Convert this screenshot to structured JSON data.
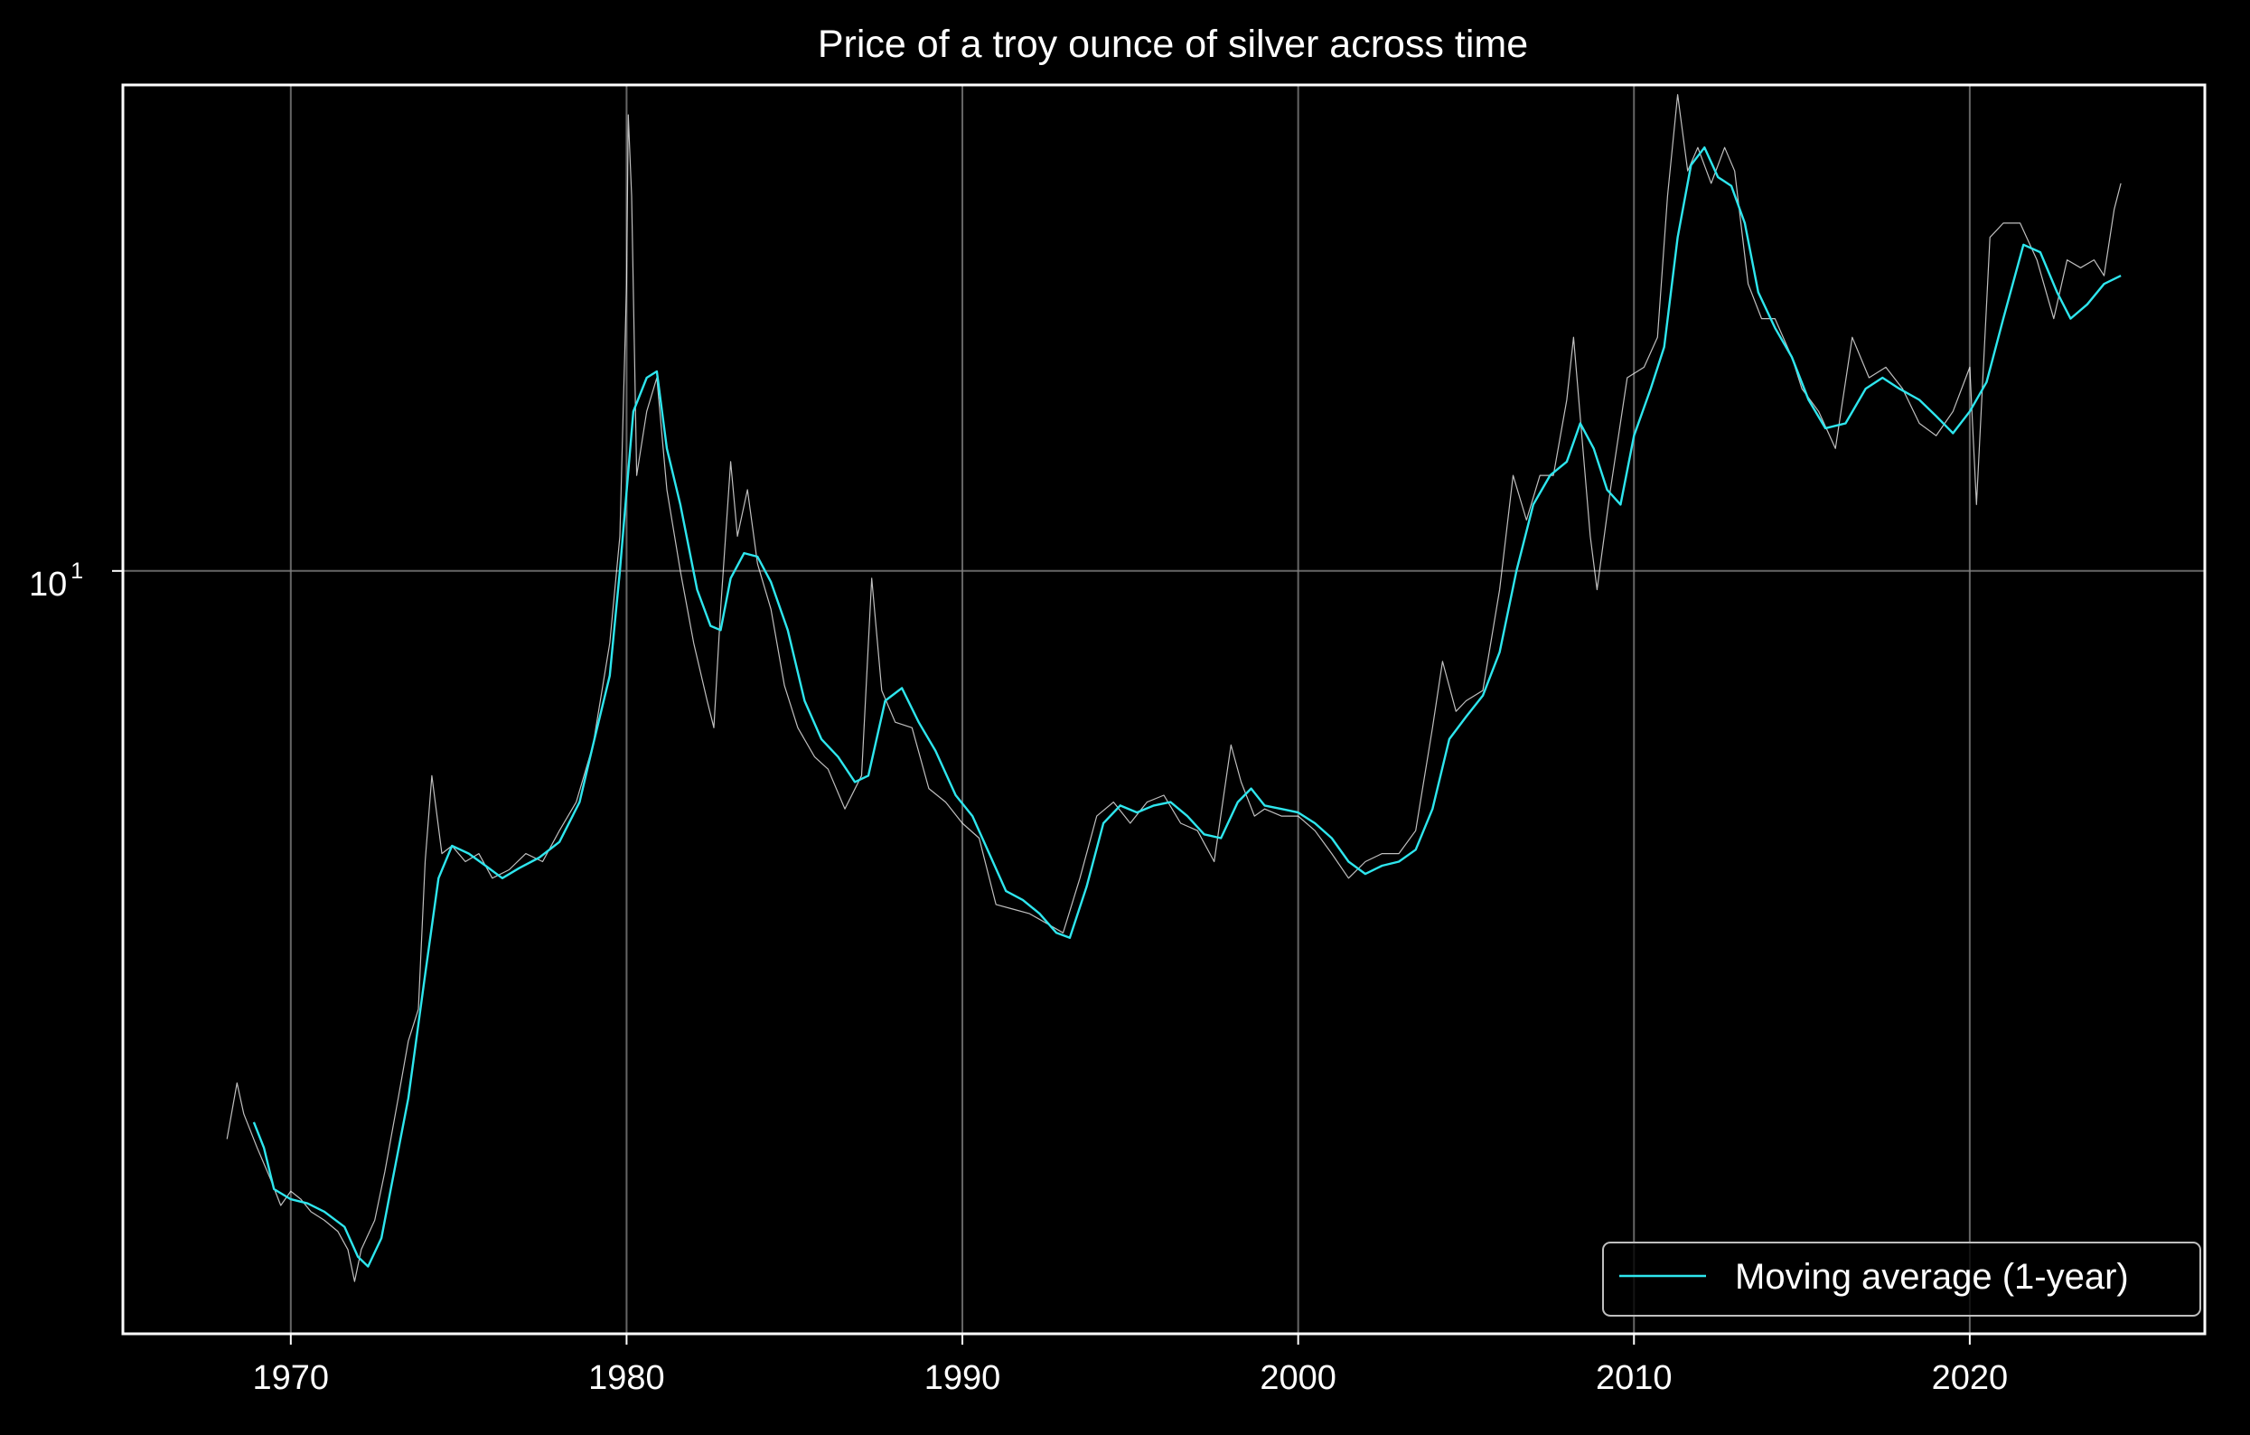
{
  "chart_data": {
    "type": "line",
    "title": "Price of a troy ounce of silver across time",
    "xlabel": "",
    "ylabel": "",
    "x_scale": "time (years)",
    "y_scale": "log",
    "xlim": [
      1965,
      2027
    ],
    "ylim": [
      1.23,
      38.0
    ],
    "x_ticks": [
      1970,
      1980,
      1990,
      2000,
      2010,
      2020
    ],
    "y_ticks": [
      {
        "value": 10,
        "base": "10",
        "exponent": "1"
      }
    ],
    "grid": true,
    "legend_placement": "lower-right",
    "colors": {
      "background": "#000000",
      "raw_series": "#ffffff",
      "moving_average": "#2ee6ee",
      "grid": "#7f7f7f"
    },
    "series": [
      {
        "name": "",
        "kind": "daily-price",
        "points": [
          [
            1968.1,
            2.1
          ],
          [
            1968.4,
            2.45
          ],
          [
            1968.6,
            2.25
          ],
          [
            1969.0,
            2.05
          ],
          [
            1969.4,
            1.88
          ],
          [
            1969.7,
            1.75
          ],
          [
            1970.0,
            1.82
          ],
          [
            1970.3,
            1.78
          ],
          [
            1970.6,
            1.72
          ],
          [
            1971.0,
            1.68
          ],
          [
            1971.4,
            1.63
          ],
          [
            1971.7,
            1.55
          ],
          [
            1971.9,
            1.42
          ],
          [
            1972.1,
            1.55
          ],
          [
            1972.5,
            1.68
          ],
          [
            1972.8,
            1.92
          ],
          [
            1973.2,
            2.35
          ],
          [
            1973.5,
            2.75
          ],
          [
            1973.8,
            3.0
          ],
          [
            1974.0,
            4.5
          ],
          [
            1974.2,
            5.7
          ],
          [
            1974.5,
            4.6
          ],
          [
            1974.8,
            4.7
          ],
          [
            1975.2,
            4.5
          ],
          [
            1975.6,
            4.6
          ],
          [
            1976.0,
            4.3
          ],
          [
            1976.5,
            4.4
          ],
          [
            1977.0,
            4.6
          ],
          [
            1977.5,
            4.5
          ],
          [
            1978.0,
            4.9
          ],
          [
            1978.5,
            5.3
          ],
          [
            1979.0,
            6.2
          ],
          [
            1979.5,
            8.2
          ],
          [
            1979.8,
            11.0
          ],
          [
            1980.0,
            22.0
          ],
          [
            1980.05,
            35.0
          ],
          [
            1980.15,
            28.0
          ],
          [
            1980.3,
            13.0
          ],
          [
            1980.6,
            15.5
          ],
          [
            1980.9,
            17.0
          ],
          [
            1981.2,
            12.5
          ],
          [
            1981.6,
            10.0
          ],
          [
            1982.0,
            8.2
          ],
          [
            1982.4,
            7.0
          ],
          [
            1982.6,
            6.5
          ],
          [
            1982.8,
            9.0
          ],
          [
            1983.1,
            13.5
          ],
          [
            1983.3,
            11.0
          ],
          [
            1983.6,
            12.5
          ],
          [
            1983.9,
            10.2
          ],
          [
            1984.3,
            9.0
          ],
          [
            1984.7,
            7.3
          ],
          [
            1985.1,
            6.5
          ],
          [
            1985.6,
            6.0
          ],
          [
            1986.0,
            5.8
          ],
          [
            1986.5,
            5.2
          ],
          [
            1987.0,
            5.7
          ],
          [
            1987.3,
            9.8
          ],
          [
            1987.6,
            7.2
          ],
          [
            1988.0,
            6.6
          ],
          [
            1988.5,
            6.5
          ],
          [
            1989.0,
            5.5
          ],
          [
            1989.5,
            5.3
          ],
          [
            1990.0,
            5.0
          ],
          [
            1990.5,
            4.8
          ],
          [
            1991.0,
            4.0
          ],
          [
            1991.5,
            3.95
          ],
          [
            1992.0,
            3.9
          ],
          [
            1992.5,
            3.8
          ],
          [
            1993.0,
            3.7
          ],
          [
            1993.5,
            4.3
          ],
          [
            1994.0,
            5.1
          ],
          [
            1994.5,
            5.3
          ],
          [
            1995.0,
            5.0
          ],
          [
            1995.5,
            5.3
          ],
          [
            1996.0,
            5.4
          ],
          [
            1996.5,
            5.0
          ],
          [
            1997.0,
            4.9
          ],
          [
            1997.5,
            4.5
          ],
          [
            1998.0,
            6.2
          ],
          [
            1998.3,
            5.6
          ],
          [
            1998.7,
            5.1
          ],
          [
            1999.0,
            5.2
          ],
          [
            1999.5,
            5.1
          ],
          [
            2000.0,
            5.1
          ],
          [
            2000.5,
            4.9
          ],
          [
            2001.0,
            4.6
          ],
          [
            2001.5,
            4.3
          ],
          [
            2002.0,
            4.5
          ],
          [
            2002.5,
            4.6
          ],
          [
            2003.0,
            4.6
          ],
          [
            2003.5,
            4.9
          ],
          [
            2004.0,
            6.5
          ],
          [
            2004.3,
            7.8
          ],
          [
            2004.7,
            6.8
          ],
          [
            2005.0,
            7.0
          ],
          [
            2005.5,
            7.2
          ],
          [
            2006.0,
            9.5
          ],
          [
            2006.4,
            13.0
          ],
          [
            2006.8,
            11.5
          ],
          [
            2007.2,
            13.0
          ],
          [
            2007.6,
            13.0
          ],
          [
            2008.0,
            16.0
          ],
          [
            2008.2,
            19.0
          ],
          [
            2008.7,
            11.0
          ],
          [
            2008.9,
            9.5
          ],
          [
            2009.3,
            12.5
          ],
          [
            2009.8,
            17.0
          ],
          [
            2010.3,
            17.5
          ],
          [
            2010.7,
            19.0
          ],
          [
            2011.0,
            28.0
          ],
          [
            2011.3,
            37.0
          ],
          [
            2011.6,
            30.0
          ],
          [
            2011.9,
            32.0
          ],
          [
            2012.3,
            29.0
          ],
          [
            2012.7,
            32.0
          ],
          [
            2013.0,
            30.0
          ],
          [
            2013.4,
            22.0
          ],
          [
            2013.8,
            20.0
          ],
          [
            2014.2,
            20.0
          ],
          [
            2014.7,
            18.0
          ],
          [
            2015.0,
            16.5
          ],
          [
            2015.5,
            15.5
          ],
          [
            2016.0,
            14.0
          ],
          [
            2016.5,
            19.0
          ],
          [
            2017.0,
            17.0
          ],
          [
            2017.5,
            17.5
          ],
          [
            2018.0,
            16.5
          ],
          [
            2018.5,
            15.0
          ],
          [
            2019.0,
            14.5
          ],
          [
            2019.5,
            15.5
          ],
          [
            2020.0,
            17.5
          ],
          [
            2020.2,
            12.0
          ],
          [
            2020.6,
            25.0
          ],
          [
            2021.0,
            26.0
          ],
          [
            2021.5,
            26.0
          ],
          [
            2022.0,
            23.5
          ],
          [
            2022.5,
            20.0
          ],
          [
            2022.9,
            23.5
          ],
          [
            2023.3,
            23.0
          ],
          [
            2023.7,
            23.5
          ],
          [
            2024.0,
            22.5
          ],
          [
            2024.3,
            27.0
          ],
          [
            2024.5,
            29.0
          ]
        ]
      },
      {
        "name": "Moving average (1-year)",
        "kind": "moving-average",
        "points": [
          [
            1968.9,
            2.2
          ],
          [
            1969.2,
            2.05
          ],
          [
            1969.5,
            1.83
          ],
          [
            1970.0,
            1.78
          ],
          [
            1970.5,
            1.76
          ],
          [
            1971.0,
            1.72
          ],
          [
            1971.6,
            1.65
          ],
          [
            1972.0,
            1.52
          ],
          [
            1972.3,
            1.48
          ],
          [
            1972.7,
            1.6
          ],
          [
            1973.0,
            1.85
          ],
          [
            1973.5,
            2.35
          ],
          [
            1974.0,
            3.3
          ],
          [
            1974.4,
            4.3
          ],
          [
            1974.8,
            4.7
          ],
          [
            1975.3,
            4.6
          ],
          [
            1975.8,
            4.45
          ],
          [
            1976.3,
            4.3
          ],
          [
            1976.8,
            4.42
          ],
          [
            1977.4,
            4.55
          ],
          [
            1978.0,
            4.75
          ],
          [
            1978.6,
            5.3
          ],
          [
            1979.0,
            6.2
          ],
          [
            1979.5,
            7.5
          ],
          [
            1979.8,
            10.0
          ],
          [
            1980.2,
            15.5
          ],
          [
            1980.6,
            17.0
          ],
          [
            1980.9,
            17.3
          ],
          [
            1981.2,
            14.0
          ],
          [
            1981.6,
            12.0
          ],
          [
            1982.1,
            9.5
          ],
          [
            1982.5,
            8.6
          ],
          [
            1982.8,
            8.5
          ],
          [
            1983.1,
            9.8
          ],
          [
            1983.5,
            10.5
          ],
          [
            1983.9,
            10.4
          ],
          [
            1984.3,
            9.7
          ],
          [
            1984.8,
            8.5
          ],
          [
            1985.3,
            7.0
          ],
          [
            1985.8,
            6.3
          ],
          [
            1986.3,
            6.0
          ],
          [
            1986.8,
            5.6
          ],
          [
            1987.2,
            5.7
          ],
          [
            1987.7,
            7.0
          ],
          [
            1988.2,
            7.25
          ],
          [
            1988.7,
            6.6
          ],
          [
            1989.2,
            6.1
          ],
          [
            1989.8,
            5.4
          ],
          [
            1990.3,
            5.1
          ],
          [
            1990.8,
            4.6
          ],
          [
            1991.3,
            4.15
          ],
          [
            1991.8,
            4.05
          ],
          [
            1992.3,
            3.9
          ],
          [
            1992.8,
            3.7
          ],
          [
            1993.2,
            3.65
          ],
          [
            1993.7,
            4.2
          ],
          [
            1994.2,
            5.0
          ],
          [
            1994.7,
            5.25
          ],
          [
            1995.2,
            5.15
          ],
          [
            1995.7,
            5.25
          ],
          [
            1996.2,
            5.3
          ],
          [
            1996.7,
            5.1
          ],
          [
            1997.2,
            4.85
          ],
          [
            1997.7,
            4.8
          ],
          [
            1998.2,
            5.3
          ],
          [
            1998.6,
            5.5
          ],
          [
            1999.0,
            5.25
          ],
          [
            1999.5,
            5.2
          ],
          [
            2000.0,
            5.15
          ],
          [
            2000.5,
            5.0
          ],
          [
            2001.0,
            4.8
          ],
          [
            2001.5,
            4.5
          ],
          [
            2002.0,
            4.35
          ],
          [
            2002.5,
            4.45
          ],
          [
            2003.0,
            4.5
          ],
          [
            2003.5,
            4.65
          ],
          [
            2004.0,
            5.2
          ],
          [
            2004.5,
            6.3
          ],
          [
            2005.0,
            6.7
          ],
          [
            2005.5,
            7.1
          ],
          [
            2006.0,
            8.0
          ],
          [
            2006.5,
            10.0
          ],
          [
            2007.0,
            12.0
          ],
          [
            2007.5,
            13.0
          ],
          [
            2008.0,
            13.5
          ],
          [
            2008.4,
            15.0
          ],
          [
            2008.8,
            14.0
          ],
          [
            2009.2,
            12.5
          ],
          [
            2009.6,
            12.0
          ],
          [
            2010.0,
            14.5
          ],
          [
            2010.5,
            16.5
          ],
          [
            2010.9,
            18.5
          ],
          [
            2011.3,
            25.0
          ],
          [
            2011.7,
            30.5
          ],
          [
            2012.1,
            32.0
          ],
          [
            2012.5,
            29.5
          ],
          [
            2012.9,
            28.8
          ],
          [
            2013.3,
            26.0
          ],
          [
            2013.7,
            21.5
          ],
          [
            2014.2,
            19.5
          ],
          [
            2014.7,
            18.0
          ],
          [
            2015.2,
            16.0
          ],
          [
            2015.7,
            14.8
          ],
          [
            2016.3,
            15.0
          ],
          [
            2016.9,
            16.5
          ],
          [
            2017.4,
            17.0
          ],
          [
            2017.9,
            16.5
          ],
          [
            2018.5,
            16.0
          ],
          [
            2019.0,
            15.3
          ],
          [
            2019.5,
            14.6
          ],
          [
            2020.0,
            15.5
          ],
          [
            2020.5,
            16.8
          ],
          [
            2021.0,
            20.0
          ],
          [
            2021.6,
            24.5
          ],
          [
            2022.1,
            24.0
          ],
          [
            2022.6,
            21.5
          ],
          [
            2023.0,
            20.0
          ],
          [
            2023.5,
            20.8
          ],
          [
            2024.0,
            22.0
          ],
          [
            2024.5,
            22.5
          ]
        ]
      }
    ]
  }
}
